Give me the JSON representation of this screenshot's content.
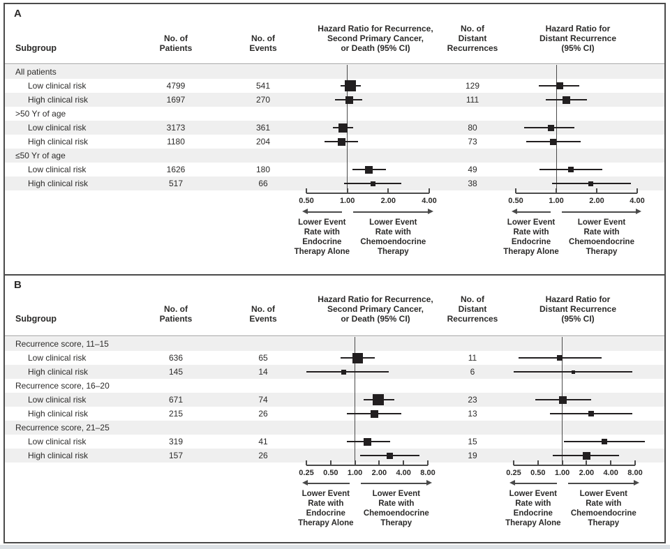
{
  "chart_data": {
    "type": "forest",
    "colors": {
      "marker": "#221f20",
      "ci_line": "#221f20",
      "stripe": "#efefef",
      "text": "#2b2a29",
      "rule": "#9b9b9b",
      "axis": "#4a4a4a",
      "border": "#4a4a4a",
      "page_edge": "#dce1e5"
    },
    "panels": [
      {
        "label": "A",
        "col_headers": {
          "subgroup": "Subgroup",
          "patients": [
            "No. of",
            "Patients"
          ],
          "events": [
            "No. of",
            "Events"
          ],
          "plot1_title": [
            "Hazard Ratio for Recurrence,",
            "Second Primary Cancer,",
            "or Death (95% CI)"
          ],
          "distant": [
            "No. of",
            "Distant",
            "Recurrences"
          ],
          "plot2_title": [
            "Hazard Ratio for",
            "Distant Recurrence",
            "(95% CI)"
          ]
        },
        "axis": {
          "scale": "log2",
          "min": 0.5,
          "max": 4,
          "reference": 1,
          "ticks": [
            0.5,
            1,
            2,
            4
          ],
          "tick_labels": [
            "0.50",
            "1.00",
            "2.00",
            "4.00"
          ]
        },
        "rows": [
          {
            "type": "group",
            "label": "All patients"
          },
          {
            "type": "data",
            "label": "Low clinical risk",
            "patients": "4799",
            "events": "541",
            "hr": {
              "est": 1.05,
              "lo": 0.89,
              "hi": 1.25,
              "size": 16
            },
            "distant": "129",
            "hr_distant": {
              "est": 1.06,
              "lo": 0.74,
              "hi": 1.48,
              "size": 10
            }
          },
          {
            "type": "data",
            "label": "High clinical risk",
            "patients": "1697",
            "events": "270",
            "hr": {
              "est": 1.03,
              "lo": 0.81,
              "hi": 1.29,
              "size": 11
            },
            "distant": "111",
            "hr_distant": {
              "est": 1.19,
              "lo": 0.84,
              "hi": 1.7,
              "size": 11
            }
          },
          {
            "type": "group",
            "label": ">50 Yr of age"
          },
          {
            "type": "data",
            "label": "Low clinical risk",
            "patients": "3173",
            "events": "361",
            "hr": {
              "est": 0.93,
              "lo": 0.78,
              "hi": 1.1,
              "size": 13
            },
            "distant": "80",
            "hr_distant": {
              "est": 0.91,
              "lo": 0.58,
              "hi": 1.36,
              "size": 9
            }
          },
          {
            "type": "data",
            "label": "High clinical risk",
            "patients": "1180",
            "events": "204",
            "hr": {
              "est": 0.91,
              "lo": 0.68,
              "hi": 1.2,
              "size": 11
            },
            "distant": "73",
            "hr_distant": {
              "est": 0.95,
              "lo": 0.6,
              "hi": 1.52,
              "size": 9
            }
          },
          {
            "type": "group",
            "label": "≤50 Yr of age"
          },
          {
            "type": "data",
            "label": "Low clinical risk",
            "patients": "1626",
            "events": "180",
            "hr": {
              "est": 1.44,
              "lo": 1.09,
              "hi": 1.93,
              "size": 11
            },
            "distant": "49",
            "hr_distant": {
              "est": 1.28,
              "lo": 0.75,
              "hi": 2.2,
              "size": 8
            }
          },
          {
            "type": "data",
            "label": "High clinical risk",
            "patients": "517",
            "events": "66",
            "hr": {
              "est": 1.55,
              "lo": 0.95,
              "hi": 2.5,
              "size": 7
            },
            "distant": "38",
            "hr_distant": {
              "est": 1.81,
              "lo": 0.93,
              "hi": 3.6,
              "size": 7
            }
          }
        ],
        "direction_labels": {
          "left": [
            "Lower Event",
            "Rate with",
            "Endocrine",
            "Therapy Alone"
          ],
          "right": [
            "Lower Event",
            "Rate with",
            "Chemoendocrine",
            "Therapy"
          ]
        }
      },
      {
        "label": "B",
        "col_headers": {
          "subgroup": "Subgroup",
          "patients": [
            "No. of",
            "Patients"
          ],
          "events": [
            "No. of",
            "Events"
          ],
          "plot1_title": [
            "Hazard Ratio for Recurrence,",
            "Second Primary Cancer,",
            "or Death (95% CI)"
          ],
          "distant": [
            "No. of",
            "Distant",
            "Recurrences"
          ],
          "plot2_title": [
            "Hazard Ratio for",
            "Distant Recurrence",
            "(95% CI)"
          ]
        },
        "axis": {
          "scale": "log2",
          "min": 0.25,
          "max": 8,
          "reference": 1,
          "ticks": [
            0.25,
            0.5,
            1,
            2,
            4,
            8
          ],
          "tick_labels": [
            "0.25",
            "0.50",
            "1.00",
            "2.00",
            "4.00",
            "8.00"
          ]
        },
        "rows": [
          {
            "type": "group",
            "label": "Recurrence score, 11–15"
          },
          {
            "type": "data",
            "label": "Low clinical risk",
            "patients": "636",
            "events": "65",
            "hr": {
              "est": 1.08,
              "lo": 0.67,
              "hi": 1.76,
              "size": 15
            },
            "distant": "11",
            "hr_distant": {
              "est": 0.93,
              "lo": 0.29,
              "hi": 3.1,
              "size": 8
            }
          },
          {
            "type": "data",
            "label": "High clinical risk",
            "patients": "145",
            "events": "14",
            "hr": {
              "est": 0.72,
              "lo": 0.25,
              "hi": 2.6,
              "size": 7
            },
            "distant": "6",
            "hr_distant": {
              "est": 1.37,
              "lo": 0.25,
              "hi": 7.4,
              "size": 5
            }
          },
          {
            "type": "group",
            "label": "Recurrence score, 16–20"
          },
          {
            "type": "data",
            "label": "Low clinical risk",
            "patients": "671",
            "events": "74",
            "hr": {
              "est": 1.94,
              "lo": 1.27,
              "hi": 3.09,
              "size": 16
            },
            "distant": "23",
            "hr_distant": {
              "est": 1.01,
              "lo": 0.46,
              "hi": 2.28,
              "size": 11
            }
          },
          {
            "type": "data",
            "label": "High clinical risk",
            "patients": "215",
            "events": "26",
            "hr": {
              "est": 1.76,
              "lo": 0.79,
              "hi": 3.77,
              "size": 11
            },
            "distant": "13",
            "hr_distant": {
              "est": 2.28,
              "lo": 0.71,
              "hi": 7.4,
              "size": 8
            }
          },
          {
            "type": "group",
            "label": "Recurrence score, 21–25"
          },
          {
            "type": "data",
            "label": "Low clinical risk",
            "patients": "319",
            "events": "41",
            "hr": {
              "est": 1.44,
              "lo": 0.8,
              "hi": 2.72,
              "size": 11
            },
            "distant": "15",
            "hr_distant": {
              "est": 3.3,
              "lo": 1.04,
              "hi": 10.5,
              "size": 8
            }
          },
          {
            "type": "data",
            "label": "High clinical risk",
            "patients": "157",
            "events": "26",
            "hr": {
              "est": 2.71,
              "lo": 1.17,
              "hi": 6.34,
              "size": 9
            },
            "distant": "19",
            "hr_distant": {
              "est": 2.0,
              "lo": 0.77,
              "hi": 5.1,
              "size": 11
            }
          }
        ],
        "direction_labels": {
          "left": [
            "Lower Event",
            "Rate with",
            "Endocrine",
            "Therapy Alone"
          ],
          "right": [
            "Lower Event",
            "Rate with",
            "Chemoendocrine",
            "Therapy"
          ]
        }
      }
    ]
  }
}
